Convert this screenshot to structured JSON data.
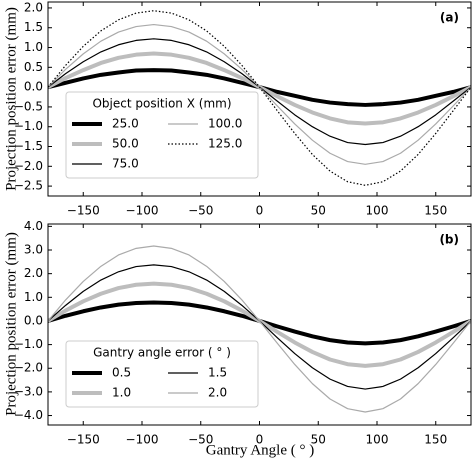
{
  "chart_data": [
    {
      "type": "line",
      "panel_label": "(a)",
      "ylabel": "Projection position error (mm)",
      "x": [
        -180,
        -165,
        -150,
        -135,
        -120,
        -105,
        -90,
        -75,
        -60,
        -45,
        -30,
        -15,
        0,
        15,
        30,
        45,
        60,
        75,
        90,
        105,
        120,
        135,
        150,
        165,
        180
      ],
      "xlim": [
        -180,
        180
      ],
      "xticks": [
        {
          "value": -150,
          "label": "−150"
        },
        {
          "value": -100,
          "label": "−100"
        },
        {
          "value": -50,
          "label": "−50"
        },
        0,
        50,
        100,
        150
      ],
      "ylim": [
        -2.75,
        2.15
      ],
      "yticks": [
        {
          "value": -2.5,
          "label": "−2.5"
        },
        {
          "value": -2,
          "label": "−2.0"
        },
        {
          "value": -1.5,
          "label": "−1.5"
        },
        {
          "value": -1,
          "label": "−1.0"
        },
        {
          "value": -0.5,
          "label": "−0.5"
        },
        {
          "value": 0,
          "label": "0.0"
        },
        {
          "value": 0.5,
          "label": "0.5"
        },
        {
          "value": 1,
          "label": "1.0"
        },
        {
          "value": 1.5,
          "label": "1.5"
        },
        {
          "value": 2,
          "label": "2.0"
        }
      ],
      "legend_title": "Object position X (mm)",
      "legend_columns": 2,
      "series": [
        {
          "name": "25.0",
          "color": "#000000",
          "line_width": 4,
          "line_style": "solid",
          "values": [
            0,
            0.11,
            0.22,
            0.31,
            0.37,
            0.42,
            0.43,
            0.42,
            0.37,
            0.31,
            0.22,
            0.11,
            0,
            -0.12,
            -0.22,
            -0.32,
            -0.39,
            -0.43,
            -0.45,
            -0.43,
            -0.39,
            -0.32,
            -0.22,
            -0.12,
            0
          ]
        },
        {
          "name": "50.0",
          "color": "#bdbdbd",
          "line_width": 4,
          "line_style": "solid",
          "values": [
            0,
            0.23,
            0.43,
            0.61,
            0.74,
            0.82,
            0.85,
            0.82,
            0.74,
            0.61,
            0.43,
            0.23,
            0,
            -0.23,
            -0.45,
            -0.64,
            -0.79,
            -0.89,
            -0.92,
            -0.89,
            -0.79,
            -0.64,
            -0.45,
            -0.23,
            0
          ]
        },
        {
          "name": "75.0",
          "color": "#000000",
          "line_width": 1.2,
          "line_style": "solid",
          "values": [
            0,
            0.34,
            0.64,
            0.89,
            1.07,
            1.18,
            1.22,
            1.18,
            1.07,
            0.89,
            0.64,
            0.34,
            0,
            -0.35,
            -0.7,
            -1.0,
            -1.24,
            -1.4,
            -1.45,
            -1.4,
            -1.24,
            -1.0,
            -0.7,
            -0.35,
            0
          ]
        },
        {
          "name": "100.0",
          "color": "#aaaaaa",
          "line_width": 1.2,
          "line_style": "solid",
          "values": [
            0,
            0.45,
            0.84,
            1.16,
            1.39,
            1.53,
            1.58,
            1.53,
            1.39,
            1.16,
            0.84,
            0.45,
            0,
            -0.47,
            -0.93,
            -1.34,
            -1.67,
            -1.88,
            -1.95,
            -1.88,
            -1.67,
            -1.34,
            -0.93,
            -0.47,
            0
          ]
        },
        {
          "name": "125.0",
          "color": "#000000",
          "line_width": 1.2,
          "line_style": "dotted",
          "values": [
            0,
            0.55,
            1.03,
            1.42,
            1.7,
            1.87,
            1.93,
            1.87,
            1.7,
            1.42,
            1.03,
            0.55,
            0,
            -0.59,
            -1.17,
            -1.7,
            -2.12,
            -2.39,
            -2.48,
            -2.39,
            -2.12,
            -1.7,
            -1.17,
            -0.59,
            0
          ]
        }
      ]
    },
    {
      "type": "line",
      "panel_label": "(b)",
      "ylabel": "Projection position error (mm)",
      "xlabel": "Gantry Angle ( ° )",
      "x": [
        -180,
        -165,
        -150,
        -135,
        -120,
        -105,
        -90,
        -75,
        -60,
        -45,
        -30,
        -15,
        0,
        15,
        30,
        45,
        60,
        75,
        90,
        105,
        120,
        135,
        150,
        165,
        180
      ],
      "xlim": [
        -180,
        180
      ],
      "xticks": [
        {
          "value": -150,
          "label": "−150"
        },
        {
          "value": -100,
          "label": "−100"
        },
        {
          "value": -50,
          "label": "−50"
        },
        0,
        50,
        100,
        150
      ],
      "ylim": [
        -4.4,
        4.1
      ],
      "yticks": [
        {
          "value": -4,
          "label": "−4.0"
        },
        {
          "value": -3,
          "label": "−3.0"
        },
        {
          "value": -2,
          "label": "−2.0"
        },
        {
          "value": -1,
          "label": "−1.0"
        },
        {
          "value": 0,
          "label": "0.0"
        },
        {
          "value": 1,
          "label": "1.0"
        },
        {
          "value": 2,
          "label": "2.0"
        },
        {
          "value": 3,
          "label": "3.0"
        },
        {
          "value": 4,
          "label": "4.0"
        }
      ],
      "legend_title": "Gantry angle error ( ° )",
      "legend_columns": 2,
      "series": [
        {
          "name": "0.5",
          "color": "#000000",
          "line_width": 4,
          "line_style": "solid",
          "values": [
            0,
            0.22,
            0.41,
            0.57,
            0.69,
            0.76,
            0.78,
            0.76,
            0.69,
            0.57,
            0.41,
            0.22,
            0,
            -0.23,
            -0.45,
            -0.65,
            -0.81,
            -0.91,
            -0.95,
            -0.91,
            -0.81,
            -0.65,
            -0.45,
            -0.23,
            0
          ]
        },
        {
          "name": "1.0",
          "color": "#bdbdbd",
          "line_width": 4,
          "line_style": "solid",
          "values": [
            0,
            0.44,
            0.83,
            1.15,
            1.39,
            1.53,
            1.58,
            1.53,
            1.39,
            1.15,
            0.83,
            0.44,
            0,
            -0.46,
            -0.91,
            -1.31,
            -1.63,
            -1.83,
            -1.9,
            -1.83,
            -1.63,
            -1.31,
            -0.91,
            -0.46,
            0
          ]
        },
        {
          "name": "1.5",
          "color": "#000000",
          "line_width": 1.2,
          "line_style": "solid",
          "values": [
            0,
            0.66,
            1.25,
            1.73,
            2.08,
            2.3,
            2.37,
            2.3,
            2.08,
            1.73,
            1.25,
            0.66,
            0,
            -0.7,
            -1.38,
            -1.98,
            -2.46,
            -2.77,
            -2.88,
            -2.77,
            -2.46,
            -1.98,
            -1.38,
            -0.7,
            0
          ]
        },
        {
          "name": "2.0",
          "color": "#aaaaaa",
          "line_width": 1.2,
          "line_style": "solid",
          "values": [
            0,
            0.89,
            1.67,
            2.31,
            2.79,
            3.07,
            3.17,
            3.07,
            2.79,
            2.31,
            1.67,
            0.89,
            0,
            -0.93,
            -1.84,
            -2.65,
            -3.3,
            -3.71,
            -3.85,
            -3.71,
            -3.3,
            -2.65,
            -1.84,
            -0.93,
            0
          ]
        }
      ]
    }
  ]
}
